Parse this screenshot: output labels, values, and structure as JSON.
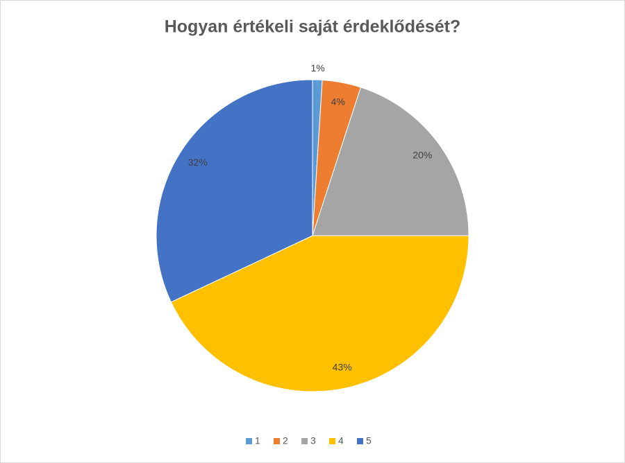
{
  "chart_data": {
    "type": "pie",
    "title": "Hogyan értékeli saját érdeklődését?",
    "categories": [
      "1",
      "2",
      "3",
      "4",
      "5"
    ],
    "values": [
      1,
      4,
      20,
      43,
      32
    ],
    "value_labels": [
      "1%",
      "4%",
      "20%",
      "43%",
      "32%"
    ],
    "colors": [
      "#5b9bd5",
      "#ed7d31",
      "#a5a5a5",
      "#ffc000",
      "#4472c4"
    ],
    "legend": "bottom"
  }
}
